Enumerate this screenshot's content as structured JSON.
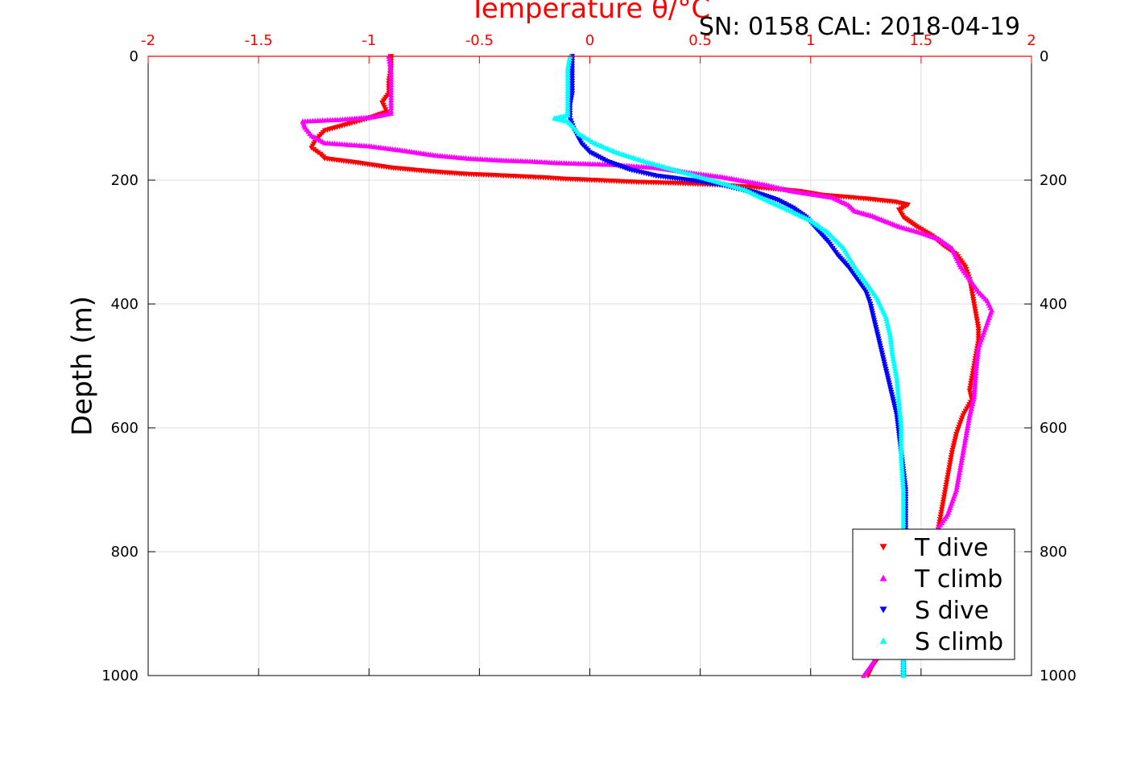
{
  "chart_data": {
    "type": "scatter",
    "title": "SN: 0158  CAL: 2018-04-19",
    "xlabel": "Temperature θ/°C",
    "ylabel": "Depth (m)",
    "xlim": [
      -2,
      2
    ],
    "ylim": [
      0,
      1000
    ],
    "y_reversed": true,
    "grid": true,
    "x_axis_position": "top",
    "legend_position": "bottom-right",
    "x_ticks": [
      "-2",
      "-1.5",
      "-1",
      "-0.5",
      "0",
      "0.5",
      "1",
      "1.5",
      "2"
    ],
    "y_ticks": [
      "0",
      "200",
      "400",
      "600",
      "800",
      "1000"
    ],
    "series": [
      {
        "name": "T dive",
        "marker": "triangle-down",
        "color": "#ff0000",
        "points": [
          [
            -0.9,
            0
          ],
          [
            -0.9,
            20
          ],
          [
            -0.91,
            40
          ],
          [
            -0.91,
            60
          ],
          [
            -0.94,
            75
          ],
          [
            -0.92,
            90
          ],
          [
            -1.0,
            100
          ],
          [
            -1.1,
            110
          ],
          [
            -1.2,
            120
          ],
          [
            -1.24,
            135
          ],
          [
            -1.26,
            148
          ],
          [
            -1.22,
            158
          ],
          [
            -1.2,
            165
          ],
          [
            -1.05,
            172
          ],
          [
            -0.9,
            180
          ],
          [
            -0.72,
            186
          ],
          [
            -0.57,
            190
          ],
          [
            -0.38,
            193
          ],
          [
            -0.2,
            196
          ],
          [
            -0.12,
            198
          ],
          [
            0.02,
            200
          ],
          [
            0.2,
            203
          ],
          [
            0.4,
            205
          ],
          [
            0.6,
            208
          ],
          [
            0.8,
            213
          ],
          [
            0.95,
            218
          ],
          [
            1.05,
            224
          ],
          [
            1.25,
            230
          ],
          [
            1.38,
            235
          ],
          [
            1.44,
            240
          ],
          [
            1.4,
            248
          ],
          [
            1.42,
            260
          ],
          [
            1.48,
            275
          ],
          [
            1.55,
            290
          ],
          [
            1.6,
            305
          ],
          [
            1.66,
            320
          ],
          [
            1.7,
            340
          ],
          [
            1.72,
            360
          ],
          [
            1.73,
            380
          ],
          [
            1.74,
            400
          ],
          [
            1.75,
            420
          ],
          [
            1.76,
            440
          ],
          [
            1.76,
            460
          ],
          [
            1.75,
            480
          ],
          [
            1.74,
            500
          ],
          [
            1.73,
            520
          ],
          [
            1.72,
            540
          ],
          [
            1.73,
            555
          ],
          [
            1.69,
            580
          ],
          [
            1.66,
            610
          ],
          [
            1.64,
            640
          ],
          [
            1.62,
            680
          ],
          [
            1.6,
            720
          ],
          [
            1.58,
            760
          ],
          [
            1.56,
            800
          ],
          [
            1.5,
            850
          ],
          [
            1.42,
            900
          ],
          [
            1.35,
            950
          ],
          [
            1.28,
            985
          ],
          [
            1.26,
            1000
          ]
        ]
      },
      {
        "name": "T climb",
        "marker": "triangle-up",
        "color": "#ff00ff",
        "points": [
          [
            1.24,
            1000
          ],
          [
            1.28,
            980
          ],
          [
            1.35,
            940
          ],
          [
            1.42,
            890
          ],
          [
            1.48,
            840
          ],
          [
            1.52,
            795
          ],
          [
            1.58,
            760
          ],
          [
            1.62,
            740
          ],
          [
            1.66,
            700
          ],
          [
            1.68,
            660
          ],
          [
            1.7,
            620
          ],
          [
            1.72,
            580
          ],
          [
            1.74,
            550
          ],
          [
            1.75,
            500
          ],
          [
            1.76,
            470
          ],
          [
            1.78,
            450
          ],
          [
            1.8,
            430
          ],
          [
            1.82,
            410
          ],
          [
            1.8,
            395
          ],
          [
            1.76,
            380
          ],
          [
            1.72,
            360
          ],
          [
            1.68,
            340
          ],
          [
            1.64,
            310
          ],
          [
            1.58,
            295
          ],
          [
            1.5,
            285
          ],
          [
            1.4,
            275
          ],
          [
            1.28,
            258
          ],
          [
            1.2,
            250
          ],
          [
            1.17,
            240
          ],
          [
            1.1,
            228
          ],
          [
            0.92,
            218
          ],
          [
            0.8,
            208
          ],
          [
            0.6,
            195
          ],
          [
            0.45,
            188
          ],
          [
            0.3,
            180
          ],
          [
            0.1,
            175
          ],
          [
            -0.15,
            172
          ],
          [
            -0.25,
            170
          ],
          [
            -0.4,
            168
          ],
          [
            -0.55,
            165
          ],
          [
            -0.7,
            160
          ],
          [
            -0.85,
            152
          ],
          [
            -1.0,
            145
          ],
          [
            -1.2,
            140
          ],
          [
            -1.26,
            128
          ],
          [
            -1.29,
            115
          ],
          [
            -1.3,
            105
          ],
          [
            -1.12,
            102
          ],
          [
            -0.98,
            98
          ],
          [
            -0.9,
            92
          ],
          [
            -0.9,
            75
          ],
          [
            -0.9,
            50
          ],
          [
            -0.9,
            25
          ],
          [
            -0.91,
            0
          ]
        ]
      },
      {
        "name": "S dive",
        "marker": "triangle-down",
        "color": "#0000ff",
        "points": [
          [
            -0.08,
            0
          ],
          [
            -0.08,
            20
          ],
          [
            -0.08,
            40
          ],
          [
            -0.08,
            60
          ],
          [
            -0.09,
            80
          ],
          [
            -0.09,
            100
          ],
          [
            -0.07,
            120
          ],
          [
            -0.04,
            140
          ],
          [
            0.0,
            155
          ],
          [
            0.08,
            170
          ],
          [
            0.18,
            183
          ],
          [
            0.3,
            193
          ],
          [
            0.45,
            200
          ],
          [
            0.6,
            208
          ],
          [
            0.75,
            220
          ],
          [
            0.85,
            232
          ],
          [
            0.92,
            245
          ],
          [
            0.98,
            260
          ],
          [
            1.03,
            280
          ],
          [
            1.08,
            300
          ],
          [
            1.12,
            320
          ],
          [
            1.17,
            340
          ],
          [
            1.21,
            360
          ],
          [
            1.25,
            380
          ],
          [
            1.27,
            400
          ],
          [
            1.29,
            430
          ],
          [
            1.31,
            460
          ],
          [
            1.33,
            490
          ],
          [
            1.35,
            520
          ],
          [
            1.37,
            550
          ],
          [
            1.39,
            580
          ],
          [
            1.4,
            610
          ],
          [
            1.41,
            640
          ],
          [
            1.42,
            670
          ],
          [
            1.43,
            700
          ],
          [
            1.43,
            750
          ],
          [
            1.43,
            800
          ],
          [
            1.43,
            850
          ],
          [
            1.42,
            900
          ],
          [
            1.42,
            950
          ],
          [
            1.42,
            1000
          ]
        ]
      },
      {
        "name": "S climb",
        "marker": "triangle-up",
        "color": "#00ffff",
        "points": [
          [
            1.42,
            1000
          ],
          [
            1.42,
            950
          ],
          [
            1.42,
            900
          ],
          [
            1.42,
            850
          ],
          [
            1.42,
            800
          ],
          [
            1.42,
            750
          ],
          [
            1.42,
            700
          ],
          [
            1.41,
            650
          ],
          [
            1.41,
            600
          ],
          [
            1.4,
            560
          ],
          [
            1.39,
            520
          ],
          [
            1.37,
            480
          ],
          [
            1.36,
            450
          ],
          [
            1.34,
            420
          ],
          [
            1.3,
            390
          ],
          [
            1.26,
            370
          ],
          [
            1.2,
            340
          ],
          [
            1.15,
            310
          ],
          [
            1.08,
            285
          ],
          [
            1.0,
            265
          ],
          [
            0.9,
            248
          ],
          [
            0.8,
            232
          ],
          [
            0.7,
            215
          ],
          [
            0.55,
            200
          ],
          [
            0.4,
            185
          ],
          [
            0.25,
            170
          ],
          [
            0.12,
            155
          ],
          [
            0.02,
            140
          ],
          [
            -0.05,
            125
          ],
          [
            -0.08,
            112
          ],
          [
            -0.1,
            105
          ],
          [
            -0.16,
            100
          ],
          [
            -0.1,
            95
          ],
          [
            -0.1,
            80
          ],
          [
            -0.1,
            60
          ],
          [
            -0.1,
            40
          ],
          [
            -0.1,
            20
          ],
          [
            -0.09,
            0
          ]
        ]
      }
    ]
  }
}
